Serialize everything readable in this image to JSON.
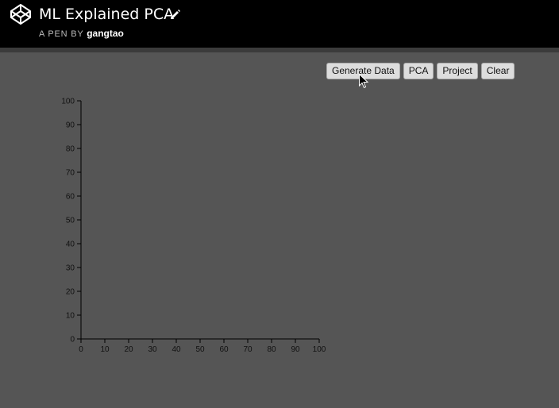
{
  "header": {
    "title": "ML Explained PCA",
    "byline_prefix": "A PEN BY",
    "author": "gangtao",
    "logo_icon": "codepen-logo-icon",
    "edit_icon": "pencil-icon"
  },
  "toolbar": {
    "buttons": [
      {
        "label": "Generate Data"
      },
      {
        "label": "PCA"
      },
      {
        "label": "Project"
      },
      {
        "label": "Clear"
      }
    ]
  },
  "colors": {
    "header_bg": "#000000",
    "canvas_bg": "#555555",
    "button_bg": "#dddddd",
    "axis": "#000000"
  },
  "chart_data": {
    "type": "scatter",
    "x": [],
    "y": [],
    "xlim": [
      0,
      100
    ],
    "ylim": [
      0,
      100
    ],
    "x_ticks": [
      0,
      10,
      20,
      30,
      40,
      50,
      60,
      70,
      80,
      90,
      100
    ],
    "y_ticks": [
      0,
      10,
      20,
      30,
      40,
      50,
      60,
      70,
      80,
      90,
      100
    ],
    "grid": false
  }
}
